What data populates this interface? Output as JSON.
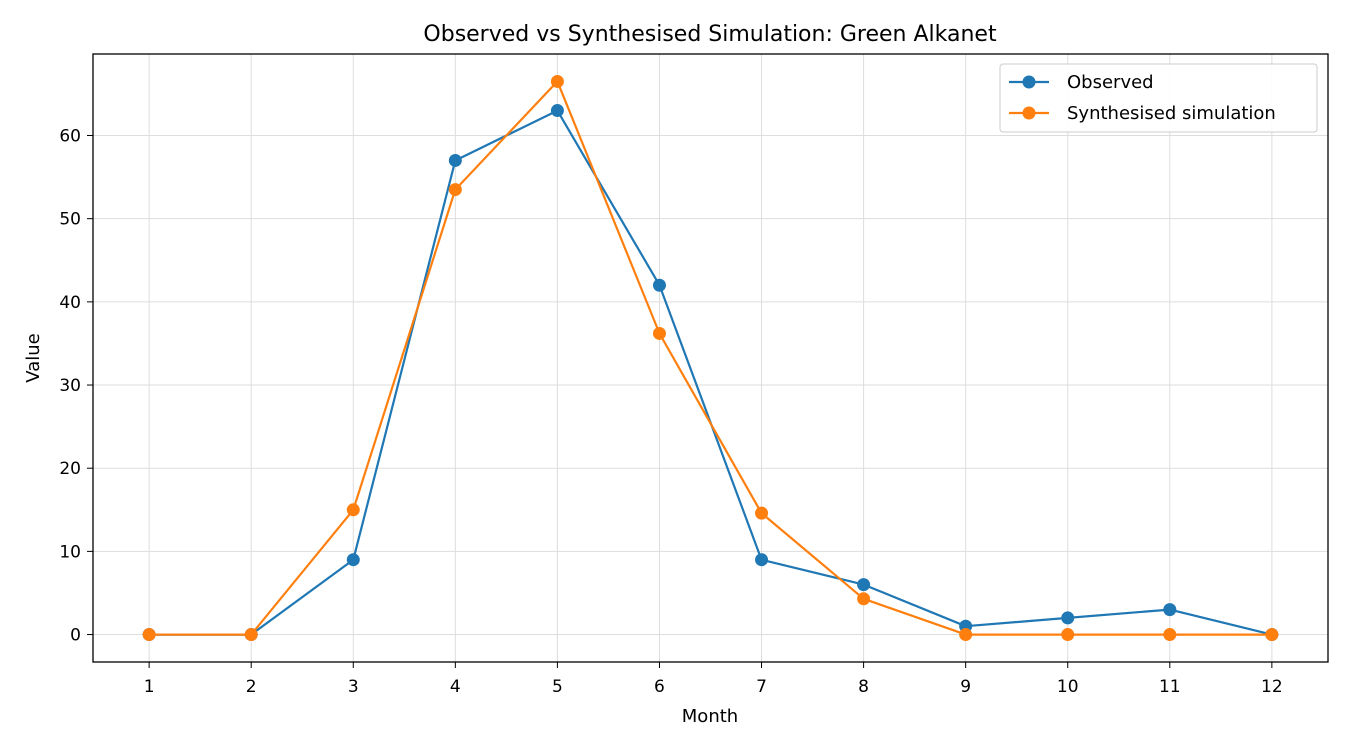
{
  "chart_data": {
    "type": "line",
    "title": "Observed vs Synthesised Simulation: Green Alkanet",
    "xlabel": "Month",
    "ylabel": "Value",
    "x": [
      1,
      2,
      3,
      4,
      5,
      6,
      7,
      8,
      9,
      10,
      11,
      12
    ],
    "xticks": [
      1,
      2,
      3,
      4,
      5,
      6,
      7,
      8,
      9,
      10,
      11,
      12
    ],
    "yticks": [
      0,
      10,
      20,
      30,
      40,
      50,
      60
    ],
    "xlim": [
      0.45,
      12.55
    ],
    "ylim": [
      -3.3,
      69.8
    ],
    "grid": true,
    "legend_position": "top-right",
    "series": [
      {
        "name": "Observed",
        "color": "#1f77b4",
        "values": [
          0,
          0,
          9,
          57,
          63,
          42,
          9,
          6,
          1,
          2,
          3,
          0
        ]
      },
      {
        "name": "Synthesised simulation",
        "color": "#ff7f0e",
        "values": [
          0,
          0,
          15,
          53.5,
          66.5,
          36.2,
          14.6,
          4.3,
          0,
          0,
          0,
          0
        ]
      }
    ]
  }
}
